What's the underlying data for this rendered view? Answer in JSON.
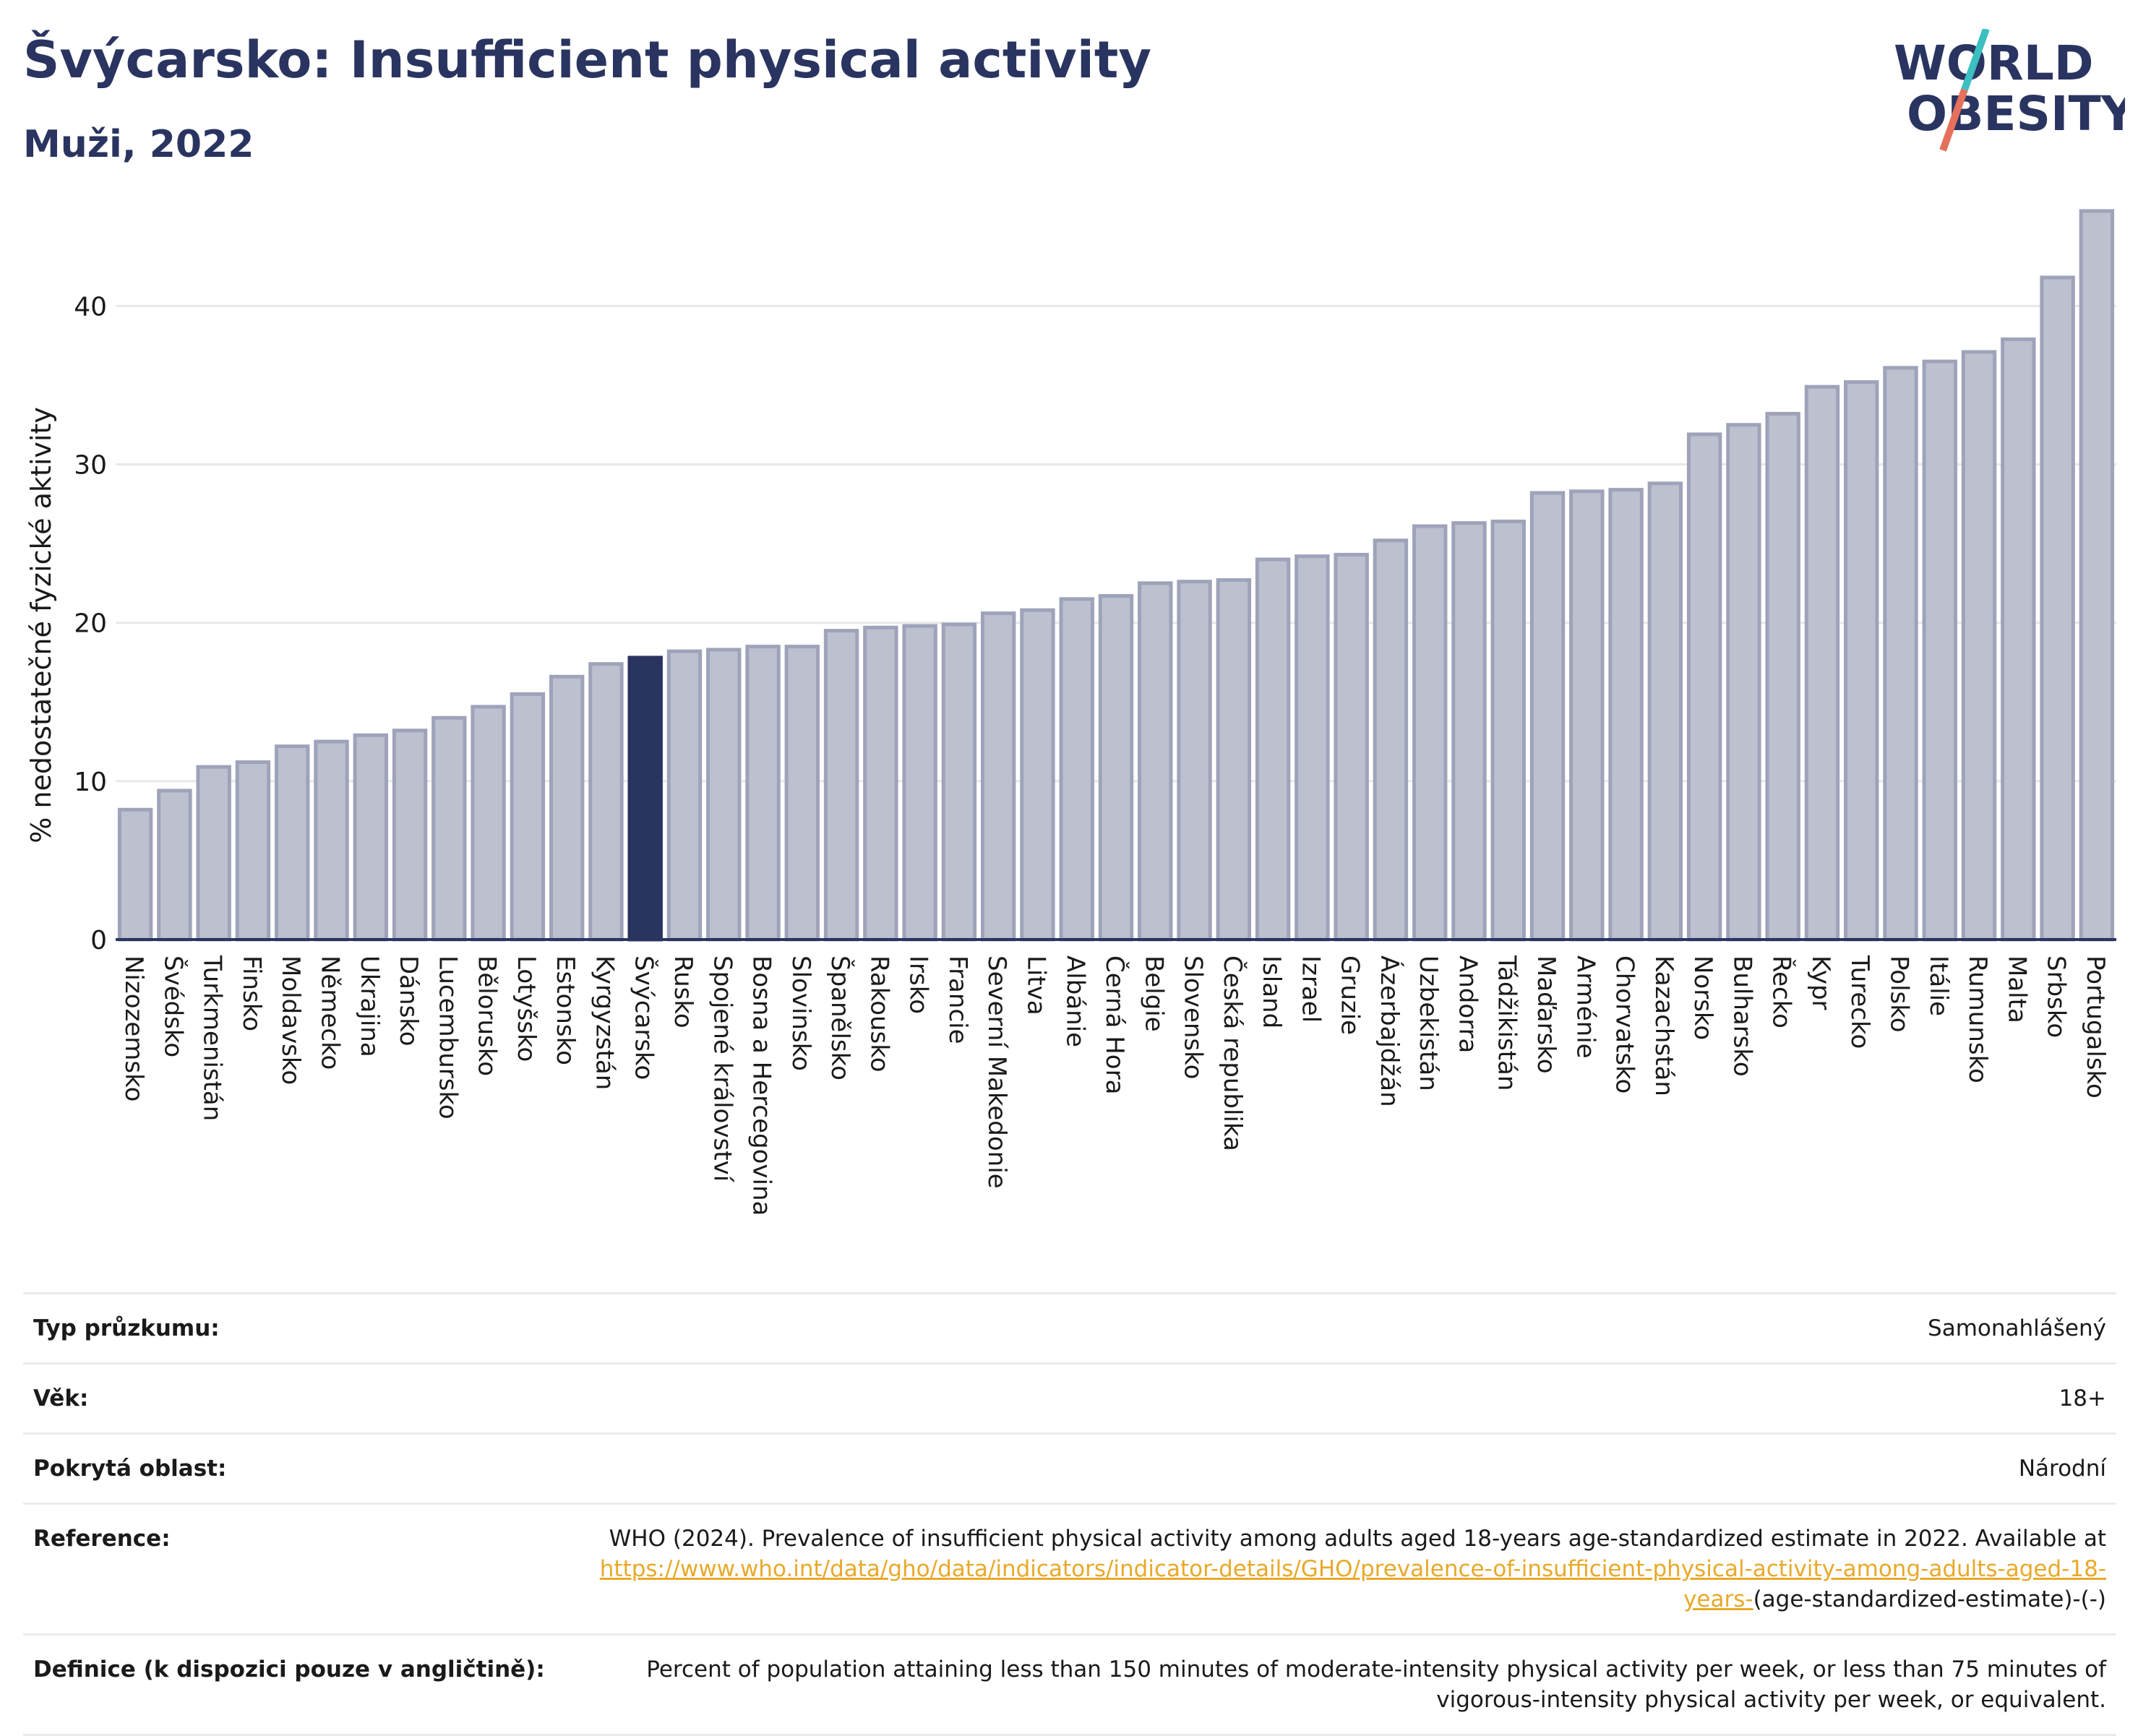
{
  "header": {
    "title": "Švýcarsko: Insufficient physical activity",
    "subtitle": "Muži, 2022"
  },
  "logo": {
    "line1": "WORLD",
    "line2": "OBESITY",
    "accent_teal": "#3bbfc0",
    "accent_coral": "#e5705c"
  },
  "colors": {
    "bar": "#bcc0cf",
    "bar_stroke": "#9ea3ba",
    "highlight": "#2a3460",
    "grid": "#e8e8e8",
    "axis": "#2a3460"
  },
  "chart_data": {
    "type": "bar",
    "ylabel": "% nedostatečné fyzické aktivity",
    "xlabel": "",
    "ylim": [
      0,
      47
    ],
    "yticks": [
      0,
      10,
      20,
      30,
      40
    ],
    "grid": true,
    "highlight": "Švýcarsko",
    "categories": [
      "Nizozemsko",
      "Švédsko",
      "Turkmenistán",
      "Finsko",
      "Moldavsko",
      "Německo",
      "Ukrajina",
      "Dánsko",
      "Lucembursko",
      "Bělorusko",
      "Lotyšsko",
      "Estonsko",
      "Kyrgyzstán",
      "Švýcarsko",
      "Rusko",
      "Spojené království",
      "Bosna a Hercegovina",
      "Slovinsko",
      "Španělsko",
      "Rakousko",
      "Irsko",
      "Francie",
      "Severní Makedonie",
      "Litva",
      "Albánie",
      "Černá Hora",
      "Belgie",
      "Slovensko",
      "Česká republika",
      "Island",
      "Izrael",
      "Gruzie",
      "Ázerbajdžán",
      "Uzbekistán",
      "Andorra",
      "Tádžikistán",
      "Maďarsko",
      "Arménie",
      "Chorvatsko",
      "Kazachstán",
      "Norsko",
      "Bulharsko",
      "Řecko",
      "Kypr",
      "Turecko",
      "Polsko",
      "Itálie",
      "Rumunsko",
      "Malta",
      "Srbsko",
      "Portugalsko"
    ],
    "values": [
      8.2,
      9.4,
      10.9,
      11.2,
      12.2,
      12.5,
      12.9,
      13.2,
      14.0,
      14.7,
      15.5,
      16.6,
      17.4,
      17.8,
      18.2,
      18.3,
      18.5,
      18.5,
      19.5,
      19.7,
      19.8,
      19.9,
      20.6,
      20.8,
      21.5,
      21.7,
      22.5,
      22.6,
      22.7,
      24.0,
      24.2,
      24.3,
      25.2,
      26.1,
      26.3,
      26.4,
      28.2,
      28.3,
      28.4,
      28.8,
      31.9,
      32.5,
      33.2,
      34.9,
      35.2,
      36.1,
      36.5,
      37.1,
      37.9,
      41.8,
      46.0
    ]
  },
  "meta": {
    "survey_type": {
      "label": "Typ průzkumu:",
      "value": "Samonahlášený"
    },
    "age": {
      "label": "Věk:",
      "value": "18+"
    },
    "coverage": {
      "label": "Pokrytá oblast:",
      "value": "Národní"
    },
    "reference": {
      "label": "Reference:",
      "text": "WHO (2024). Prevalence of insufficient physical activity among adults aged 18-years age-standardized estimate in 2022. Available at",
      "link": "https://www.who.int/data/gho/data/indicators/indicator-details/GHO/prevalence-of-insufficient-physical-activity-among-adults-aged-18-years-",
      "suffix": "(age-standardized-estimate)-(-)"
    },
    "definition": {
      "label": "Definice (k dispozici pouze v angličtině):",
      "value": "Percent of population attaining less than 150 minutes of moderate-intensity physical activity per week, or less than 75 minutes of vigorous-intensity physical activity per week, or equivalent."
    }
  }
}
